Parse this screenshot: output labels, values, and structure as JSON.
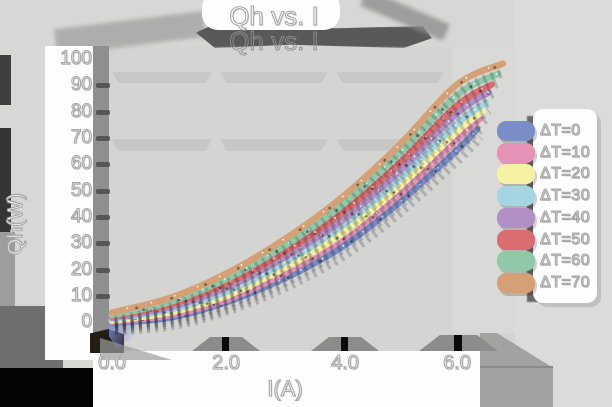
{
  "title": "Qh vs. I",
  "colors": {
    "background": "#d7d8d6",
    "panel": "#fefefe",
    "grid_bar": "#c7c8c6",
    "shadow_dark": "#4c4c4c",
    "shadow_mid": "#8f8f8f"
  },
  "chart_data": {
    "type": "line",
    "title": "Qh vs. I",
    "xlabel": "I(A)",
    "ylabel": "Qh(W)",
    "xlim": [
      0,
      7
    ],
    "ylim": [
      0,
      105
    ],
    "x_ticks": [
      "0.0",
      "2.0",
      "4.0",
      "6.0"
    ],
    "x_tick_values": [
      0,
      2,
      4,
      6
    ],
    "y_ticks": [
      "100",
      "90",
      "80",
      "70",
      "60",
      "50",
      "40",
      "30",
      "20",
      "10",
      "0"
    ],
    "y_tick_values": [
      100,
      90,
      80,
      70,
      60,
      50,
      40,
      30,
      20,
      10,
      0
    ],
    "grid": "horizontal bars at Qh=68 and Qh=95 (segmented)",
    "legend_position": "right",
    "series": [
      {
        "name": "ΔT=0",
        "color": "#7b8dc7",
        "x": [
          0,
          1,
          2,
          3,
          4,
          5,
          6,
          6.35
        ],
        "y": [
          0,
          2,
          8,
          17,
          29,
          46,
          66,
          74
        ]
      },
      {
        "name": "ΔT=10",
        "color": "#e592b6",
        "x": [
          0,
          1,
          2,
          3,
          4,
          5,
          6,
          6.4
        ],
        "y": [
          0.5,
          3,
          9,
          19,
          32,
          49,
          70,
          78
        ]
      },
      {
        "name": "ΔT=20",
        "color": "#f6f2a3",
        "x": [
          0,
          1,
          2,
          3,
          4,
          5,
          6,
          6.45
        ],
        "y": [
          1,
          4,
          10.5,
          21,
          34,
          52,
          73,
          81
        ]
      },
      {
        "name": "ΔT=30",
        "color": "#a5d5e0",
        "x": [
          0,
          1,
          2,
          3,
          4,
          5,
          6,
          6.5
        ],
        "y": [
          1.5,
          5,
          12,
          23,
          37,
          55,
          76,
          84
        ]
      },
      {
        "name": "ΔT=40",
        "color": "#b190c7",
        "x": [
          0,
          1,
          2,
          3,
          4,
          5,
          6,
          6.55
        ],
        "y": [
          2,
          6,
          13.5,
          25,
          39,
          58,
          80,
          88
        ]
      },
      {
        "name": "ΔT=50",
        "color": "#d96d70",
        "x": [
          0,
          1,
          2,
          3,
          4,
          5,
          6,
          6.6
        ],
        "y": [
          2.5,
          7,
          15,
          27,
          42,
          61,
          83,
          91
        ]
      },
      {
        "name": "ΔT=60",
        "color": "#90c9a8",
        "x": [
          0,
          1,
          2,
          3,
          4,
          5,
          6,
          6.7
        ],
        "y": [
          3,
          8,
          17,
          29.5,
          45,
          65,
          87,
          95
        ]
      },
      {
        "name": "ΔT=70",
        "color": "#d6a077",
        "x": [
          0,
          1,
          2,
          3,
          4,
          5,
          6,
          6.8
        ],
        "y": [
          4,
          9.5,
          19,
          32,
          48,
          68,
          91,
          99
        ]
      }
    ]
  }
}
